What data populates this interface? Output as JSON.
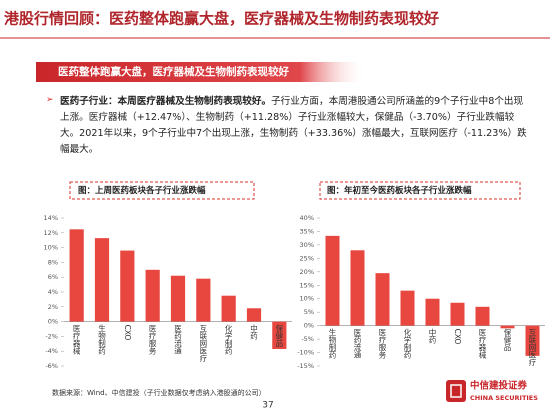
{
  "header": {
    "title": "港股行情回顾：医药整体跑赢大盘，医疗器械及生物制药表现较好"
  },
  "banner": "医药整体跑赢大盘，医疗器械及生物制药表现较好",
  "bullet": {
    "lead": "医药子行业：本周医疗器械及生物制药表现较好。",
    "text": "子行业方面，本周港股通公司所涵盖的9个子行业中8个出现上涨。医疗器械（+12.47%）、生物制药（+11.28%）子行业涨幅较大，保健品（-3.70%）子行业跌幅较大。2021年以来，9个子行业中7个出现上涨，生物制药（+33.36%）涨幅最大，互联网医疗（-11.23%）跌幅最大。"
  },
  "source": "数据来源：Wind、中信建投（子行业数据仅考虑纳入港股通的公司）",
  "page_number": "37",
  "logo": {
    "cn": "中信建投证券",
    "en": "CHINA SECURITIES"
  },
  "chart_data": [
    {
      "type": "bar",
      "title": "图：上周医药板块各子行业涨跌幅",
      "color": "#e8473f",
      "categories": [
        "医疗器械",
        "生物制药",
        "CXO",
        "医疗服务",
        "医药流通",
        "互联网医疗",
        "化学制药",
        "中药",
        "保健品"
      ],
      "values": [
        12.47,
        11.28,
        9.6,
        7.0,
        6.2,
        5.8,
        3.5,
        1.8,
        -3.7
      ],
      "ylim": [
        -6,
        14
      ],
      "yticks": [
        {
          "value": -6,
          "label": "-6%"
        },
        {
          "value": -4,
          "label": "-4%"
        },
        {
          "value": -2,
          "label": "-2%"
        },
        {
          "value": 0,
          "label": "0%"
        },
        {
          "value": 2,
          "label": "2%"
        },
        {
          "value": 4,
          "label": "4%"
        },
        {
          "value": 6,
          "label": "6%"
        },
        {
          "value": 8,
          "label": "8%"
        },
        {
          "value": 10,
          "label": "10%"
        },
        {
          "value": 12,
          "label": "12%"
        },
        {
          "value": 14,
          "label": "14%"
        }
      ],
      "grid": false
    },
    {
      "type": "bar",
      "title": "图：年初至今医药板块各子行业涨跌幅",
      "color": "#e8473f",
      "categories": [
        "生物制药",
        "医药流通",
        "医疗服务",
        "化学制药",
        "中药",
        "CXO",
        "医疗器械",
        "保健品",
        "互联网医疗"
      ],
      "values": [
        33.36,
        28.0,
        19.5,
        13.0,
        10.0,
        8.5,
        7.0,
        -1.0,
        -11.23
      ],
      "ylim": [
        -15,
        40
      ],
      "yticks": [
        {
          "value": -15,
          "label": "-15%"
        },
        {
          "value": -10,
          "label": "-10%"
        },
        {
          "value": -5,
          "label": "-5%"
        },
        {
          "value": 0,
          "label": "0%"
        },
        {
          "value": 5,
          "label": "5%"
        },
        {
          "value": 10,
          "label": "10%"
        },
        {
          "value": 15,
          "label": "15%"
        },
        {
          "value": 20,
          "label": "20%"
        },
        {
          "value": 25,
          "label": "25%"
        },
        {
          "value": 30,
          "label": "30%"
        },
        {
          "value": 35,
          "label": "35%"
        },
        {
          "value": 40,
          "label": "40%"
        }
      ],
      "grid": false
    }
  ]
}
